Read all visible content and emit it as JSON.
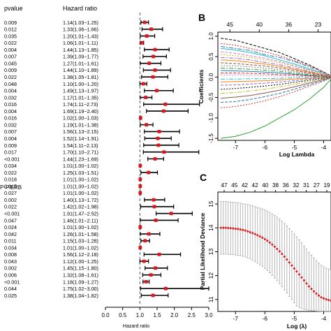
{
  "panel_a": {
    "pvalue_header": "pvalue",
    "hr_header": "Hazard ratio",
    "truncated_row_label": "P-PILRB",
    "xlabel": "Hazard ratio",
    "x_ticks": [
      "0.0",
      "0.5",
      "1.0",
      "1.5",
      "2.0",
      "2.5",
      "3.0"
    ]
  },
  "panel_b": {
    "letter": "B",
    "xlabel": "Log Lambda",
    "ylabel": "Coefficients",
    "top_ticks": [
      "45",
      "40",
      "36",
      "23"
    ],
    "x_ticks": [
      "-7",
      "-6",
      "-5",
      "-4"
    ],
    "y_ticks": [
      "1.0",
      "0.5",
      "0.0",
      "-0.5",
      "-1.0",
      "-1.5"
    ]
  },
  "panel_c": {
    "letter": "C",
    "xlabel": "Log (λ)",
    "ylabel": "Partial Likelihood Deviance",
    "top_ticks": [
      "47",
      "45",
      "42",
      "42",
      "40",
      "38",
      "36",
      "32",
      "31",
      "27",
      "19"
    ],
    "x_ticks": [
      "-7",
      "-6",
      "-5",
      "-4"
    ],
    "y_ticks": [
      "15",
      "14",
      "13",
      "12",
      "11"
    ]
  },
  "chart_data": [
    {
      "type": "forest",
      "xlabel": "Hazard ratio",
      "xlim": [
        0,
        3.0
      ],
      "reference_line": 1.0,
      "rows": [
        {
          "p": "0.009",
          "label": "1.14(1.03−1.25)",
          "hr": 1.14,
          "lo": 1.03,
          "hi": 1.25
        },
        {
          "p": "0.012",
          "label": "1.33(1.06−1.66)",
          "hr": 1.33,
          "lo": 1.06,
          "hi": 1.66
        },
        {
          "p": "0.035",
          "label": "1.20(1.01−1.43)",
          "hr": 1.2,
          "lo": 1.01,
          "hi": 1.43
        },
        {
          "p": "0.022",
          "label": "1.06(1.01−1.11)",
          "hr": 1.06,
          "lo": 1.01,
          "hi": 1.11
        },
        {
          "p": "0.004",
          "label": "1.44(1.13−1.85)",
          "hr": 1.44,
          "lo": 1.13,
          "hi": 1.85
        },
        {
          "p": "0.007",
          "label": "1.39(1.09−1.77)",
          "hr": 1.39,
          "lo": 1.09,
          "hi": 1.77
        },
        {
          "p": "0.045",
          "label": "1.27(1.01−1.61)",
          "hr": 1.27,
          "lo": 1.01,
          "hi": 1.61
        },
        {
          "p": "0.009",
          "label": "1.44(1.10−1.89)",
          "hr": 1.44,
          "lo": 1.1,
          "hi": 1.89
        },
        {
          "p": "0.022",
          "label": "1.38(1.05−1.81)",
          "hr": 1.38,
          "lo": 1.05,
          "hi": 1.81
        },
        {
          "p": "0.048",
          "label": "1.10(1.00−1.20)",
          "hr": 1.1,
          "lo": 1.0,
          "hi": 1.2
        },
        {
          "p": "0.004",
          "label": "1.49(1.13−1.97)",
          "hr": 1.49,
          "lo": 1.13,
          "hi": 1.97
        },
        {
          "p": "0.032",
          "label": "1.17(1.01−1.35)",
          "hr": 1.17,
          "lo": 1.01,
          "hi": 1.35
        },
        {
          "p": "0.016",
          "label": "1.74(1.11−2.73)",
          "hr": 1.74,
          "lo": 1.11,
          "hi": 2.73
        },
        {
          "p": "0.004",
          "label": "1.69(1.19−2.40)",
          "hr": 1.69,
          "lo": 1.19,
          "hi": 2.4
        },
        {
          "p": "0.016",
          "label": "1.02(1.00−1.03)",
          "hr": 1.02,
          "lo": 1.0,
          "hi": 1.03
        },
        {
          "p": "0.032",
          "label": "1.19(1.01−1.38)",
          "hr": 1.19,
          "lo": 1.01,
          "hi": 1.38
        },
        {
          "p": "0.007",
          "label": "1.56(1.13−2.15)",
          "hr": 1.56,
          "lo": 1.13,
          "hi": 2.15
        },
        {
          "p": "0.004",
          "label": "1.52(1.14−1.91)",
          "hr": 1.52,
          "lo": 1.14,
          "hi": 1.91
        },
        {
          "p": "0.009",
          "label": "1.54(1.11−2.13)",
          "hr": 1.54,
          "lo": 1.11,
          "hi": 2.13
        },
        {
          "p": "0.017",
          "label": "1.70(1.10−2.71)",
          "hr": 1.7,
          "lo": 1.1,
          "hi": 2.71
        },
        {
          "p": "<0.001",
          "label": "1.44(1.23−1.69)",
          "hr": 1.44,
          "lo": 1.23,
          "hi": 1.69
        },
        {
          "p": "0.034",
          "label": "1.01(1.00−1.02)",
          "hr": 1.01,
          "lo": 1.0,
          "hi": 1.02
        },
        {
          "p": "0.022",
          "label": "1.25(1.03−1.51)",
          "hr": 1.25,
          "lo": 1.03,
          "hi": 1.51
        },
        {
          "p": "0.018",
          "label": "1.01(1.00−1.02)",
          "hr": 1.01,
          "lo": 1.0,
          "hi": 1.02
        },
        {
          "p": "0.045",
          "label": "1.01(1.00−1.02)",
          "hr": 1.01,
          "lo": 1.0,
          "hi": 1.02
        },
        {
          "p": "0.027",
          "label": "1.01(1.00−1.02)",
          "hr": 1.01,
          "lo": 1.0,
          "hi": 1.02
        },
        {
          "p": "0.002",
          "label": "1.40(1.13−1.72)",
          "hr": 1.4,
          "lo": 1.13,
          "hi": 1.72
        },
        {
          "p": "0.022",
          "label": "1.42(1.02−1.98)",
          "hr": 1.42,
          "lo": 1.02,
          "hi": 1.98
        },
        {
          "p": "<0.001",
          "label": "1.91(1.47−2.52)",
          "hr": 1.91,
          "lo": 1.47,
          "hi": 2.52
        },
        {
          "p": "0.047",
          "label": "1.46(1.01−2.11)",
          "hr": 1.46,
          "lo": 1.01,
          "hi": 2.11
        },
        {
          "p": "0.024",
          "label": "1.01(1.00−1.02)",
          "hr": 1.01,
          "lo": 1.0,
          "hi": 1.02
        },
        {
          "p": "0.042",
          "label": "1.26(1.01−1.58)",
          "hr": 1.26,
          "lo": 1.01,
          "hi": 1.58
        },
        {
          "p": "0.011",
          "label": "1.15(1.03−1.28)",
          "hr": 1.15,
          "lo": 1.03,
          "hi": 1.28
        },
        {
          "p": "0.034",
          "label": "1.01(1.00−1.02)",
          "hr": 1.01,
          "lo": 1.0,
          "hi": 1.02
        },
        {
          "p": "0.008",
          "label": "1.56(1.12−2.18)",
          "hr": 1.56,
          "lo": 1.12,
          "hi": 2.18
        },
        {
          "p": "0.043",
          "label": "1.12(1.00−1.25)",
          "hr": 1.12,
          "lo": 1.0,
          "hi": 1.25
        },
        {
          "p": "0.002",
          "label": "1.45(1.15−1.80)",
          "hr": 1.45,
          "lo": 1.15,
          "hi": 1.8
        },
        {
          "p": "0.006",
          "label": "1.32(1.08−1.61)",
          "hr": 1.32,
          "lo": 1.08,
          "hi": 1.61
        },
        {
          "p": "<0.001",
          "label": "1.18(1.09−1.27)",
          "hr": 1.18,
          "lo": 1.09,
          "hi": 1.27
        },
        {
          "p": "0.044",
          "label": "1.75(1.02−3.00)",
          "hr": 1.75,
          "lo": 1.02,
          "hi": 3.0
        },
        {
          "p": "0.025",
          "label": "1.38(1.04−1.82)",
          "hr": 1.38,
          "lo": 1.04,
          "hi": 1.82
        }
      ],
      "colors": {
        "point": "#e0161b",
        "bar": "#000000",
        "refline": "#555555"
      }
    },
    {
      "type": "line",
      "xlabel": "Log Lambda",
      "ylabel": "Coefficients",
      "xlim": [
        -7.6,
        -3.75
      ],
      "ylim": [
        -1.55,
        1.1
      ],
      "grid": false,
      "x": [
        -7.5,
        -7.0,
        -6.5,
        -6.0,
        -5.5,
        -5.0,
        -4.5,
        -4.0,
        -3.75
      ],
      "series": [
        {
          "color": "#2ca02c",
          "values": [
            -1.5,
            -1.45,
            -1.35,
            -1.2,
            -1.0,
            -0.8,
            -0.55,
            -0.25,
            -0.05
          ]
        },
        {
          "color": "#000000",
          "values": [
            0.95,
            0.9,
            0.8,
            0.7,
            0.6,
            0.45,
            0.3,
            0.12,
            0.03
          ]
        },
        {
          "color": "#d62728",
          "values": [
            0.82,
            0.78,
            0.7,
            0.62,
            0.52,
            0.4,
            0.28,
            0.12,
            0.04
          ]
        },
        {
          "color": "#1f77b4",
          "values": [
            0.75,
            0.7,
            0.65,
            0.55,
            0.48,
            0.38,
            0.25,
            0.1,
            0.03
          ]
        },
        {
          "color": "#17becf",
          "values": [
            0.7,
            0.66,
            0.6,
            0.52,
            0.42,
            0.32,
            0.2,
            0.08,
            0.02
          ]
        },
        {
          "color": "#e377c2",
          "values": [
            0.62,
            0.58,
            0.52,
            0.46,
            0.38,
            0.28,
            0.18,
            0.08,
            0.02
          ]
        },
        {
          "color": "#bcbd22",
          "values": [
            0.55,
            0.52,
            0.48,
            0.42,
            0.35,
            0.26,
            0.16,
            0.06,
            0.02
          ]
        },
        {
          "color": "#9467bd",
          "values": [
            0.48,
            0.46,
            0.42,
            0.36,
            0.3,
            0.22,
            0.14,
            0.05,
            0.01
          ]
        },
        {
          "color": "#ff7f0e",
          "values": [
            0.42,
            0.4,
            0.36,
            0.32,
            0.26,
            0.19,
            0.12,
            0.05,
            0.01
          ]
        },
        {
          "color": "#8c564b",
          "values": [
            0.35,
            0.33,
            0.3,
            0.27,
            0.22,
            0.16,
            0.1,
            0.04,
            0.01
          ]
        },
        {
          "color": "#7f7f7f",
          "values": [
            0.28,
            0.27,
            0.25,
            0.22,
            0.18,
            0.13,
            0.08,
            0.03,
            0.0
          ]
        },
        {
          "color": "#2ca02c",
          "values": [
            0.22,
            0.21,
            0.19,
            0.17,
            0.14,
            0.1,
            0.06,
            0.02,
            0.0
          ]
        },
        {
          "color": "#1f77b4",
          "values": [
            0.16,
            0.15,
            0.14,
            0.12,
            0.1,
            0.07,
            0.04,
            0.02,
            0.0
          ]
        },
        {
          "color": "#d62728",
          "values": [
            0.1,
            0.1,
            0.09,
            0.08,
            0.06,
            0.05,
            0.03,
            0.01,
            0.0
          ]
        },
        {
          "color": "#e377c2",
          "values": [
            0.05,
            0.05,
            0.04,
            0.04,
            0.03,
            0.02,
            0.01,
            0.0,
            0.0
          ]
        },
        {
          "color": "#17becf",
          "values": [
            -0.05,
            -0.05,
            -0.04,
            -0.04,
            -0.03,
            -0.02,
            -0.01,
            0.0,
            0.0
          ]
        },
        {
          "color": "#ff7f0e",
          "values": [
            -0.12,
            -0.11,
            -0.1,
            -0.09,
            -0.07,
            -0.05,
            -0.03,
            -0.01,
            0.0
          ]
        },
        {
          "color": "#9467bd",
          "values": [
            -0.2,
            -0.19,
            -0.17,
            -0.15,
            -0.12,
            -0.09,
            -0.05,
            -0.02,
            0.0
          ]
        },
        {
          "color": "#000000",
          "values": [
            -0.3,
            -0.28,
            -0.25,
            -0.22,
            -0.18,
            -0.13,
            -0.08,
            -0.03,
            0.0
          ]
        },
        {
          "color": "#bcbd22",
          "values": [
            -0.4,
            -0.38,
            -0.34,
            -0.3,
            -0.24,
            -0.18,
            -0.11,
            -0.04,
            -0.01
          ]
        },
        {
          "color": "#8c564b",
          "values": [
            -0.52,
            -0.49,
            -0.45,
            -0.39,
            -0.32,
            -0.24,
            -0.15,
            -0.06,
            -0.01
          ]
        },
        {
          "color": "#1f77b4",
          "values": [
            -0.62,
            -0.6,
            -0.55,
            -0.48,
            -0.4,
            -0.3,
            -0.19,
            -0.08,
            -0.02
          ]
        },
        {
          "color": "#d62728",
          "values": [
            -0.75,
            -0.72,
            -0.66,
            -0.58,
            -0.48,
            -0.36,
            -0.23,
            -0.1,
            -0.02
          ]
        }
      ]
    },
    {
      "type": "scatter",
      "xlabel": "Log (λ)",
      "ylabel": "Partial Likelihood Deviance",
      "xlim": [
        -7.6,
        -3.75
      ],
      "ylim": [
        10.5,
        15.5
      ],
      "error_bars": true,
      "x": [
        -7.5,
        -7.3,
        -7.1,
        -6.9,
        -6.7,
        -6.5,
        -6.3,
        -6.1,
        -5.9,
        -5.7,
        -5.5,
        -5.3,
        -5.1,
        -4.9,
        -4.7,
        -4.5,
        -4.3,
        -4.1,
        -3.9,
        -3.75
      ],
      "values": [
        14.0,
        14.0,
        13.98,
        13.95,
        13.9,
        13.82,
        13.72,
        13.6,
        13.45,
        13.25,
        13.02,
        12.75,
        12.45,
        12.15,
        11.85,
        11.55,
        11.3,
        11.1,
        11.0,
        10.95
      ],
      "upper": [
        15.1,
        15.1,
        15.08,
        15.05,
        15.0,
        14.95,
        14.88,
        14.8,
        14.7,
        14.55,
        14.38,
        14.15,
        13.88,
        13.6,
        13.3,
        12.98,
        12.7,
        12.45,
        12.3,
        12.25
      ],
      "lower": [
        12.9,
        12.9,
        12.88,
        12.85,
        12.8,
        12.7,
        12.56,
        12.4,
        12.2,
        11.95,
        11.66,
        11.35,
        11.02,
        10.7,
        10.6,
        10.55,
        10.52,
        10.5,
        10.5,
        10.5
      ],
      "colors": {
        "point": "#e0161b",
        "bar": "#a6a6a6"
      }
    }
  ]
}
